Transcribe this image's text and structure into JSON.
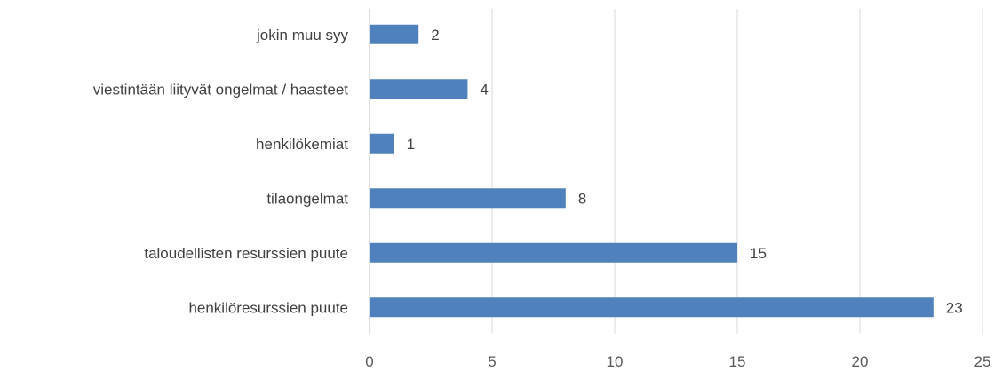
{
  "chart_data": {
    "type": "bar",
    "orientation": "horizontal",
    "title": "",
    "xlabel": "",
    "ylabel": "",
    "categories": [
      "jokin muu syy",
      "viestintään liityvät ongelmat / haasteet",
      "henkilökemiat",
      "tilaongelmat",
      "taloudellisten resurssien puute",
      "henkilöresurssien puute"
    ],
    "values": [
      2,
      4,
      1,
      8,
      15,
      23
    ],
    "xlim": [
      0,
      25
    ],
    "x_ticks": [
      "0",
      "5",
      "10",
      "15",
      "20",
      "25"
    ],
    "grid": "vertical",
    "legend": "none",
    "data_labels": true,
    "colors": {
      "bar": "#4f81bd",
      "grid": "#d9d9d9",
      "axis": "#bfbfbf"
    }
  }
}
